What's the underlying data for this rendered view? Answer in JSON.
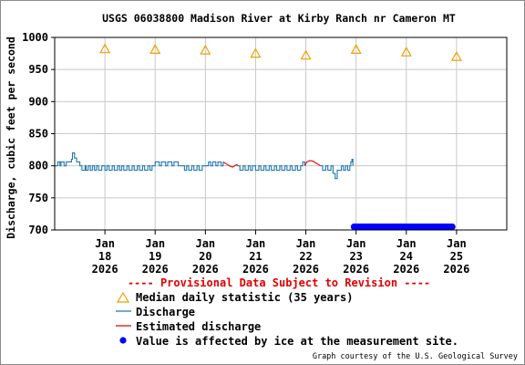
{
  "chart_data": {
    "type": "line",
    "title": "USGS 06038800 Madison River at Kirby Ranch nr Cameron MT",
    "ylabel": "Discharge, cubic feet per second",
    "xlabel": "",
    "ylim": [
      700,
      1000
    ],
    "yticks": [
      700,
      750,
      800,
      850,
      900,
      950,
      1000
    ],
    "ytick_labels": [
      "700",
      "750",
      "800",
      "850",
      "900",
      "950",
      "1000"
    ],
    "xlim": [
      "2026-01-17",
      "2026-01-26"
    ],
    "xticks": [
      {
        "date": "2026-01-18",
        "lines": [
          "Jan",
          "18",
          "2026"
        ]
      },
      {
        "date": "2026-01-19",
        "lines": [
          "Jan",
          "19",
          "2026"
        ]
      },
      {
        "date": "2026-01-20",
        "lines": [
          "Jan",
          "20",
          "2026"
        ]
      },
      {
        "date": "2026-01-21",
        "lines": [
          "Jan",
          "21",
          "2026"
        ]
      },
      {
        "date": "2026-01-22",
        "lines": [
          "Jan",
          "22",
          "2026"
        ]
      },
      {
        "date": "2026-01-23",
        "lines": [
          "Jan",
          "23",
          "2026"
        ]
      },
      {
        "date": "2026-01-24",
        "lines": [
          "Jan",
          "24",
          "2026"
        ]
      },
      {
        "date": "2026-01-25",
        "lines": [
          "Jan",
          "25",
          "2026"
        ]
      }
    ],
    "grid": true,
    "colors": {
      "median": "#f0a000",
      "discharge": "#1f78b4",
      "estimated": "#e00000",
      "ice": "#0000ff",
      "grid": "#c8c8c8"
    },
    "series": [
      {
        "name": "Median daily statistic (35 years)",
        "kind": "marker-triangle",
        "points": [
          {
            "x": "2026-01-18",
            "y": 982
          },
          {
            "x": "2026-01-19",
            "y": 981
          },
          {
            "x": "2026-01-20",
            "y": 980
          },
          {
            "x": "2026-01-21",
            "y": 975
          },
          {
            "x": "2026-01-22",
            "y": 972
          },
          {
            "x": "2026-01-23",
            "y": 981
          },
          {
            "x": "2026-01-24",
            "y": 977
          },
          {
            "x": "2026-01-25",
            "y": 970
          }
        ]
      },
      {
        "name": "Discharge",
        "kind": "step-line",
        "segments": [
          [
            [
              "2026-01-17 00:00",
              800
            ],
            [
              "2026-01-17 01:30",
              806
            ],
            [
              "2026-01-17 02:30",
              800
            ],
            [
              "2026-01-17 03:00",
              806
            ],
            [
              "2026-01-17 04:30",
              800
            ],
            [
              "2026-01-17 05:30",
              806
            ],
            [
              "2026-01-17 08:00",
              810
            ],
            [
              "2026-01-17 08:30",
              820
            ],
            [
              "2026-01-17 09:30",
              812
            ],
            [
              "2026-01-17 10:30",
              806
            ],
            [
              "2026-01-17 12:00",
              800
            ],
            [
              "2026-01-17 13:00",
              793
            ],
            [
              "2026-01-17 14:30",
              800
            ],
            [
              "2026-01-17 15:00",
              793
            ],
            [
              "2026-01-17 16:00",
              800
            ],
            [
              "2026-01-17 17:00",
              793
            ],
            [
              "2026-01-17 18:00",
              800
            ],
            [
              "2026-01-17 19:00",
              793
            ],
            [
              "2026-01-17 20:00",
              800
            ],
            [
              "2026-01-17 21:00",
              793
            ],
            [
              "2026-01-17 22:30",
              800
            ],
            [
              "2026-01-18 00:00",
              793
            ],
            [
              "2026-01-18 01:00",
              800
            ],
            [
              "2026-01-18 02:00",
              793
            ],
            [
              "2026-01-18 03:30",
              800
            ],
            [
              "2026-01-18 04:30",
              793
            ],
            [
              "2026-01-18 06:00",
              800
            ],
            [
              "2026-01-18 07:00",
              793
            ],
            [
              "2026-01-18 08:00",
              800
            ],
            [
              "2026-01-18 09:00",
              793
            ],
            [
              "2026-01-18 10:30",
              800
            ],
            [
              "2026-01-18 11:30",
              793
            ],
            [
              "2026-01-18 13:00",
              800
            ],
            [
              "2026-01-18 14:00",
              793
            ],
            [
              "2026-01-18 15:30",
              800
            ],
            [
              "2026-01-18 16:30",
              793
            ],
            [
              "2026-01-18 18:00",
              800
            ],
            [
              "2026-01-18 19:00",
              793
            ],
            [
              "2026-01-18 20:30",
              800
            ],
            [
              "2026-01-18 21:30",
              793
            ],
            [
              "2026-01-18 22:30",
              800
            ],
            [
              "2026-01-19 00:00",
              806
            ],
            [
              "2026-01-19 02:00",
              800
            ],
            [
              "2026-01-19 03:00",
              806
            ],
            [
              "2026-01-19 05:00",
              800
            ],
            [
              "2026-01-19 06:00",
              806
            ],
            [
              "2026-01-19 08:00",
              800
            ],
            [
              "2026-01-19 09:00",
              806
            ],
            [
              "2026-01-19 11:00",
              800
            ],
            [
              "2026-01-19 12:00",
              800
            ],
            [
              "2026-01-19 14:00",
              793
            ],
            [
              "2026-01-19 15:00",
              800
            ],
            [
              "2026-01-19 16:00",
              793
            ],
            [
              "2026-01-19 17:30",
              800
            ],
            [
              "2026-01-19 18:30",
              793
            ],
            [
              "2026-01-19 20:00",
              800
            ],
            [
              "2026-01-19 21:00",
              793
            ],
            [
              "2026-01-19 22:30",
              800
            ],
            [
              "2026-01-20 00:00",
              800
            ],
            [
              "2026-01-20 01:30",
              806
            ],
            [
              "2026-01-20 02:30",
              800
            ],
            [
              "2026-01-20 03:30",
              806
            ],
            [
              "2026-01-20 05:00",
              800
            ],
            [
              "2026-01-20 06:00",
              806
            ],
            [
              "2026-01-20 07:30",
              800
            ],
            [
              "2026-01-20 08:30",
              806
            ]
          ],
          [
            [
              "2026-01-20 15:30",
              800
            ],
            [
              "2026-01-20 16:30",
              793
            ],
            [
              "2026-01-20 18:00",
              800
            ],
            [
              "2026-01-20 19:00",
              793
            ],
            [
              "2026-01-20 20:30",
              800
            ],
            [
              "2026-01-20 21:30",
              793
            ],
            [
              "2026-01-20 22:30",
              800
            ],
            [
              "2026-01-21 00:00",
              793
            ],
            [
              "2026-01-21 01:30",
              800
            ],
            [
              "2026-01-21 02:30",
              793
            ],
            [
              "2026-01-21 04:00",
              800
            ],
            [
              "2026-01-21 05:00",
              793
            ],
            [
              "2026-01-21 06:30",
              800
            ],
            [
              "2026-01-21 07:30",
              793
            ],
            [
              "2026-01-21 09:00",
              800
            ],
            [
              "2026-01-21 10:00",
              793
            ],
            [
              "2026-01-21 11:30",
              800
            ],
            [
              "2026-01-21 12:30",
              793
            ],
            [
              "2026-01-21 14:00",
              800
            ],
            [
              "2026-01-21 15:00",
              793
            ],
            [
              "2026-01-21 16:30",
              800
            ],
            [
              "2026-01-21 17:30",
              793
            ],
            [
              "2026-01-21 19:00",
              800
            ],
            [
              "2026-01-21 20:00",
              793
            ],
            [
              "2026-01-21 21:30",
              800
            ],
            [
              "2026-01-21 22:30",
              806
            ],
            [
              "2026-01-21 23:30",
              800
            ]
          ],
          [
            [
              "2026-01-22 07:00",
              800
            ],
            [
              "2026-01-22 08:00",
              793
            ],
            [
              "2026-01-22 09:30",
              800
            ],
            [
              "2026-01-22 10:30",
              793
            ],
            [
              "2026-01-22 12:00",
              800
            ],
            [
              "2026-01-22 13:00",
              788
            ],
            [
              "2026-01-22 14:00",
              780
            ],
            [
              "2026-01-22 15:00",
              793
            ],
            [
              "2026-01-22 16:00",
              793
            ],
            [
              "2026-01-22 17:00",
              800
            ],
            [
              "2026-01-22 18:00",
              793
            ],
            [
              "2026-01-22 19:00",
              800
            ],
            [
              "2026-01-22 20:00",
              793
            ],
            [
              "2026-01-22 21:00",
              800
            ],
            [
              "2026-01-22 21:30",
              806
            ],
            [
              "2026-01-22 22:00",
              810
            ],
            [
              "2026-01-22 22:30",
              800
            ]
          ]
        ]
      },
      {
        "name": "Estimated discharge",
        "kind": "line",
        "segments": [
          [
            [
              "2026-01-20 08:30",
              806
            ],
            [
              "2026-01-20 10:00",
              803
            ],
            [
              "2026-01-20 11:30",
              800
            ],
            [
              "2026-01-20 13:00",
              798
            ],
            [
              "2026-01-20 14:00",
              800
            ],
            [
              "2026-01-20 15:00",
              802
            ],
            [
              "2026-01-20 15:30",
              800
            ]
          ],
          [
            [
              "2026-01-21 23:30",
              800
            ],
            [
              "2026-01-22 00:30",
              806
            ],
            [
              "2026-01-22 02:00",
              808
            ],
            [
              "2026-01-22 03:30",
              807
            ],
            [
              "2026-01-22 05:00",
              804
            ],
            [
              "2026-01-22 06:00",
              802
            ],
            [
              "2026-01-22 07:00",
              800
            ]
          ]
        ]
      },
      {
        "name": "Value is affected by ice at the measurement site.",
        "kind": "marker-dot",
        "x_start": "2026-01-22 23:00",
        "x_end": "2026-01-24 22:00",
        "y": 705
      }
    ]
  },
  "notice": "---- Provisional Data Subject to Revision ----",
  "legend": [
    {
      "symbol": "triangle",
      "label": "Median daily statistic (35 years)"
    },
    {
      "symbol": "line-blue",
      "label": "Discharge"
    },
    {
      "symbol": "line-red",
      "label": "Estimated discharge"
    },
    {
      "symbol": "dot-blue",
      "label": "Value is affected by ice at the measurement site."
    }
  ],
  "credit": "Graph courtesy of the U.S. Geological Survey"
}
